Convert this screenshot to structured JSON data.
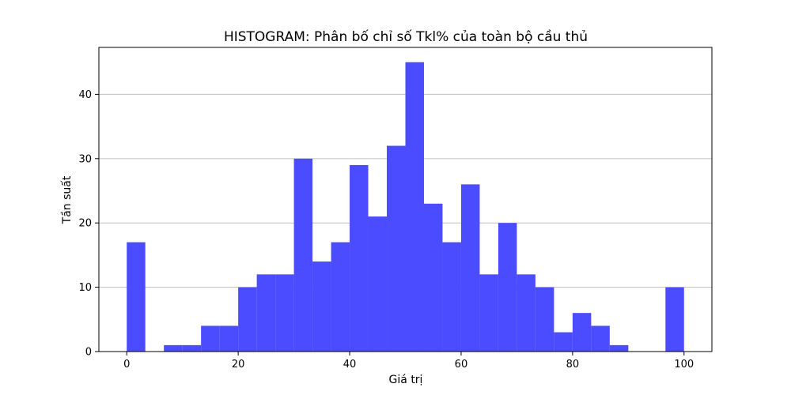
{
  "chart_data": {
    "type": "bar",
    "title": "HISTOGRAM: Phân bố chỉ số Tkl% của toàn bộ cầu thủ",
    "xlabel": "Giá trị",
    "ylabel": "Tần suất",
    "bar_color": "#4b4bff",
    "grid_color": "#c0c0c0",
    "grid": "y",
    "xlim": [
      -5,
      105
    ],
    "ylim": [
      0,
      47.3
    ],
    "xticks": [
      0,
      20,
      40,
      60,
      80,
      100
    ],
    "yticks": [
      0,
      10,
      20,
      30,
      40
    ],
    "bin_width": 3.333,
    "bin_starts": [
      0,
      3.333,
      6.667,
      10,
      13.333,
      16.667,
      20,
      23.333,
      26.667,
      30,
      33.333,
      36.667,
      40,
      43.333,
      46.667,
      50,
      53.333,
      56.667,
      60,
      63.333,
      66.667,
      70,
      73.333,
      76.667,
      80,
      83.333,
      86.667,
      90,
      93.333,
      96.667
    ],
    "values": [
      17,
      0,
      1,
      1,
      4,
      4,
      10,
      12,
      12,
      30,
      14,
      17,
      29,
      21,
      32,
      45,
      23,
      17,
      26,
      12,
      20,
      12,
      10,
      3,
      6,
      4,
      1,
      0,
      0,
      10
    ]
  }
}
